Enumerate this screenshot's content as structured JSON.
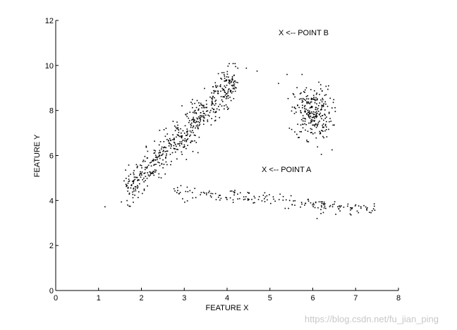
{
  "chart_data": {
    "type": "scatter",
    "title": "",
    "xlabel": "FEATURE X",
    "ylabel": "FEATURE Y",
    "xlim": [
      0,
      8
    ],
    "ylim": [
      0,
      12
    ],
    "xticks": [
      0,
      1,
      2,
      3,
      4,
      5,
      6,
      7,
      8
    ],
    "yticks": [
      0,
      2,
      4,
      6,
      8,
      10,
      12
    ],
    "grid": false,
    "marker_color": "#000000",
    "annotations": [
      {
        "text": "X <-- POINT B",
        "x": 5.2,
        "y": 11.5
      },
      {
        "text": "X <-- POINT A",
        "x": 4.8,
        "y": 5.35
      }
    ],
    "clusters": [
      {
        "shape": "diagonal band",
        "x_range": [
          1.45,
          4.7
        ],
        "y_range": [
          3.8,
          10.1
        ],
        "approx_points": 560
      },
      {
        "shape": "compact blob",
        "center": [
          6.0,
          7.9
        ],
        "approx_points": 260
      },
      {
        "shape": "horizontal band",
        "x_range": [
          2.7,
          7.45
        ],
        "y_range": [
          3.2,
          4.7
        ],
        "approx_points": 180
      }
    ],
    "outliers": [
      [
        1.15,
        3.72
      ],
      [
        1.68,
        3.8
      ],
      [
        2.95,
        6.05
      ],
      [
        3.05,
        5.82
      ],
      [
        4.05,
        10.08
      ],
      [
        4.2,
        9.95
      ],
      [
        4.25,
        9.88
      ],
      [
        4.45,
        9.88
      ],
      [
        4.7,
        9.75
      ],
      [
        5.2,
        9.2
      ],
      [
        5.4,
        9.6
      ],
      [
        5.75,
        9.6
      ],
      [
        6.2,
        6.05
      ],
      [
        6.45,
        6.25
      ],
      [
        6.1,
        3.2
      ]
    ]
  },
  "watermark": "https://blog.csdn.net/fu_jian_ping"
}
